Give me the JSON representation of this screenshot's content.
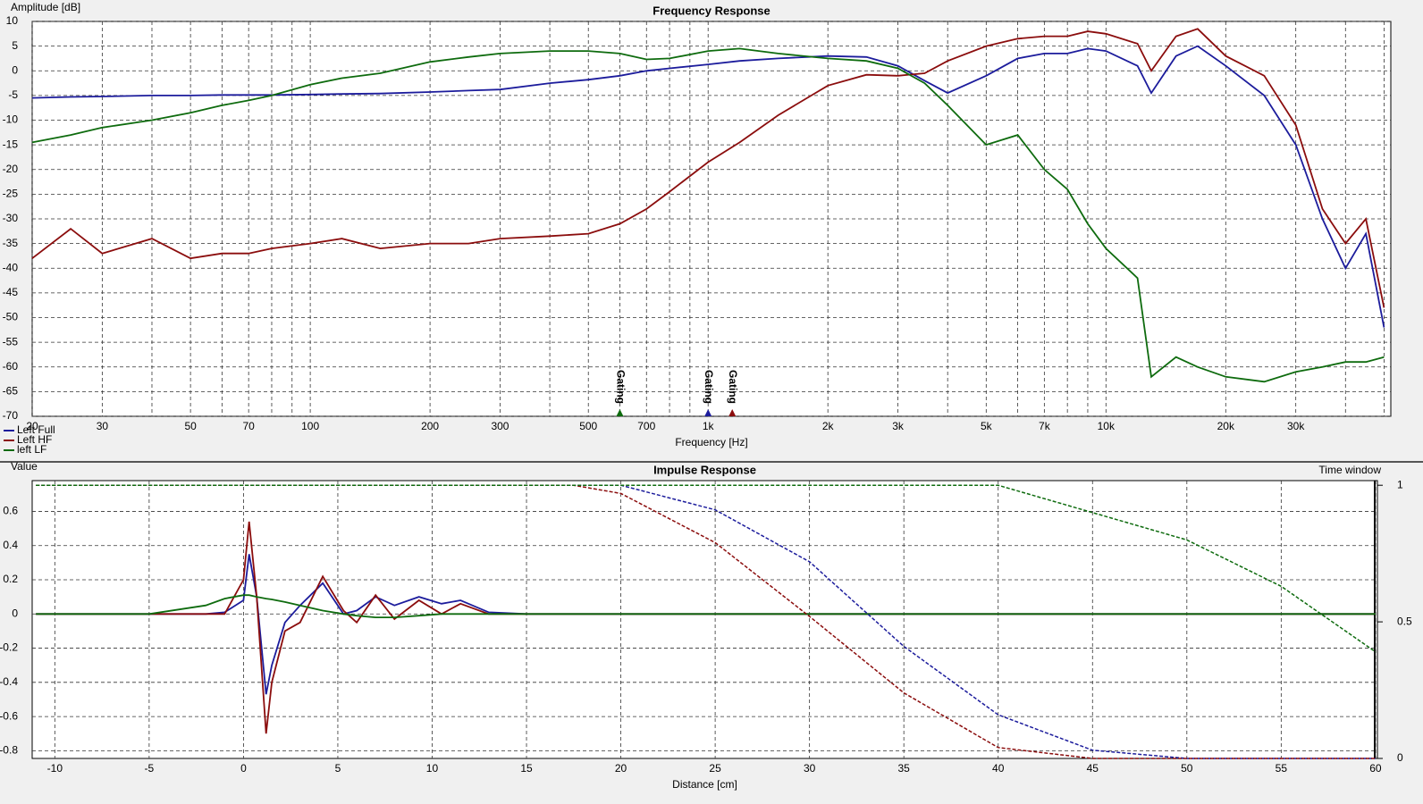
{
  "chart_data": [
    {
      "type": "line",
      "title": "Frequency Response",
      "ylabel": "Amplitude [dB]",
      "xlabel": "Frequency [Hz]",
      "log_x": true,
      "grid": true,
      "xlim": [
        20,
        52000
      ],
      "ylim": [
        -70,
        10
      ],
      "xticks": [
        20,
        30,
        50,
        70,
        100,
        200,
        300,
        500,
        700,
        {
          "value": 1000,
          "label": "1k"
        },
        {
          "value": 2000,
          "label": "2k"
        },
        {
          "value": 3000,
          "label": "3k"
        },
        {
          "value": 5000,
          "label": "5k"
        },
        {
          "value": 7000,
          "label": "7k"
        },
        {
          "value": 10000,
          "label": "10k"
        },
        {
          "value": 20000,
          "label": "20k"
        },
        {
          "value": 30000,
          "label": "30k"
        }
      ],
      "xminorticks": [
        40,
        60,
        80,
        90,
        400,
        600,
        800,
        900,
        4000,
        6000,
        8000,
        9000,
        40000,
        50000
      ],
      "yticks": [
        10,
        5,
        0,
        -5,
        -10,
        -15,
        -20,
        -25,
        -30,
        -35,
        -40,
        -45,
        -50,
        -55,
        -60,
        -65,
        -70
      ],
      "x": [
        20,
        25,
        30,
        40,
        50,
        60,
        70,
        80,
        100,
        120,
        150,
        200,
        250,
        300,
        400,
        500,
        600,
        700,
        800,
        1000,
        1200,
        1500,
        2000,
        2500,
        3000,
        3500,
        4000,
        5000,
        6000,
        7000,
        8000,
        9000,
        10000,
        12000,
        13000,
        15000,
        17000,
        20000,
        25000,
        30000,
        35000,
        40000,
        45000,
        50000
      ],
      "series": [
        {
          "name": "Left Full",
          "color": "#1c1c9c",
          "values": [
            -5.5,
            -5.3,
            -5.2,
            -5,
            -5,
            -4.9,
            -4.9,
            -4.9,
            -4.8,
            -4.7,
            -4.6,
            -4.3,
            -4,
            -3.8,
            -2.5,
            -1.8,
            -1,
            0,
            0.5,
            1.3,
            2,
            2.5,
            3,
            2.8,
            1,
            -2,
            -4.5,
            -1,
            2.5,
            3.5,
            3.5,
            4.5,
            4,
            1,
            -4.5,
            3,
            5,
            1,
            -5,
            -15,
            -30,
            -40,
            -33,
            -52
          ]
        },
        {
          "name": "Left HF",
          "color": "#8b0d0d",
          "values": [
            -38,
            -32,
            -37,
            -34,
            -38,
            -37,
            -37,
            -36,
            -35,
            -34,
            -36,
            -35,
            -35,
            -34,
            -33.5,
            -33,
            -31,
            -28,
            -24.5,
            -18.5,
            -14.5,
            -9,
            -3,
            -0.8,
            -1,
            -0.5,
            2,
            5,
            6.5,
            7,
            7,
            8,
            7.5,
            5.5,
            0,
            7,
            8.5,
            3,
            -1,
            -11,
            -28,
            -35,
            -30,
            -48
          ]
        },
        {
          "name": "left LF",
          "color": "#0e6b0e",
          "values": [
            -14.5,
            -13,
            -11.5,
            -10,
            -8.5,
            -7,
            -6,
            -5,
            -2.8,
            -1.5,
            -0.5,
            1.8,
            2.8,
            3.5,
            4,
            4,
            3.5,
            2.3,
            2.5,
            4,
            4.5,
            3.5,
            2.5,
            2,
            0.5,
            -2.5,
            -7,
            -15,
            -13,
            -20,
            -24,
            -31,
            -36,
            -42,
            -62,
            -58,
            -60,
            -62,
            -63,
            -61,
            -60,
            -59,
            -59,
            -58
          ]
        }
      ],
      "markers": [
        {
          "label": "Gating",
          "x": 600,
          "color": "#0e6b0e"
        },
        {
          "label": "Gating",
          "x": 1000,
          "color": "#1c1c9c"
        },
        {
          "label": "Gating",
          "x": 1150,
          "color": "#8b0d0d"
        }
      ]
    },
    {
      "type": "line",
      "title": "Impulse Response",
      "ylabel": "Value",
      "y2label": "Time window",
      "xlabel": "Distance [cm]",
      "grid": true,
      "xlim": [
        -11.2,
        60.1
      ],
      "ylim": [
        -0.845,
        0.78
      ],
      "y2lim": [
        0,
        1.017
      ],
      "xticks": [
        -10,
        -5,
        0,
        5,
        10,
        15,
        20,
        25,
        30,
        35,
        40,
        45,
        50,
        55,
        60
      ],
      "yticks": [
        0.6,
        0.4,
        0.2,
        0,
        -0.2,
        -0.4,
        -0.6,
        -0.8
      ],
      "y2ticks": [
        0,
        0.5,
        1
      ],
      "x": [
        -11,
        -5,
        -2,
        -1,
        0,
        0.3,
        0.7,
        1.2,
        1.5,
        2.2,
        3,
        4.2,
        5.3,
        6,
        7,
        8,
        9.3,
        10.5,
        11.5,
        13,
        15,
        20,
        30,
        40,
        50,
        60
      ],
      "series": [
        {
          "name": "Left Full",
          "color": "#1c1c9c",
          "values": [
            0,
            0,
            0,
            0.01,
            0.08,
            0.35,
            0.1,
            -0.47,
            -0.3,
            -0.05,
            0.05,
            0.18,
            0,
            0.02,
            0.1,
            0.05,
            0.1,
            0.06,
            0.08,
            0.01,
            0,
            0,
            0,
            0,
            0,
            0
          ]
        },
        {
          "name": "Left HF",
          "color": "#8b0d0d",
          "values": [
            0,
            0,
            0,
            0,
            0.2,
            0.54,
            0.1,
            -0.7,
            -0.4,
            -0.1,
            -0.05,
            0.22,
            0.02,
            -0.05,
            0.11,
            -0.03,
            0.08,
            0,
            0.06,
            0,
            0,
            0,
            0,
            0,
            0,
            0
          ]
        },
        {
          "name": "left LF",
          "color": "#0e6b0e",
          "values": [
            0,
            0,
            0.05,
            0.09,
            0.11,
            0.11,
            0.1,
            0.09,
            0.085,
            0.07,
            0.05,
            0.02,
            0,
            -0.01,
            -0.02,
            -0.02,
            -0.01,
            0,
            0,
            0,
            0,
            0,
            0,
            0,
            0,
            0
          ]
        },
        {
          "axis": "y2",
          "dashed": true,
          "color": "#1c1c9c",
          "x": [
            -11,
            17.5,
            20,
            25,
            30,
            35,
            40,
            45,
            50,
            55,
            60
          ],
          "values": [
            1,
            1,
            1,
            0.91,
            0.72,
            0.41,
            0.16,
            0.03,
            0,
            0,
            0
          ]
        },
        {
          "axis": "y2",
          "dashed": true,
          "color": "#8b0d0d",
          "x": [
            -11,
            17.5,
            20,
            25,
            30,
            35,
            40,
            45,
            50,
            55,
            60
          ],
          "values": [
            1,
            1,
            0.97,
            0.79,
            0.52,
            0.24,
            0.04,
            0,
            0,
            0,
            0
          ]
        },
        {
          "axis": "y2",
          "dashed": true,
          "color": "#0e6b0e",
          "x": [
            -11,
            17.5,
            20,
            25,
            30,
            35,
            40,
            45,
            50,
            55,
            60
          ],
          "values": [
            1,
            1,
            1,
            1,
            1,
            1,
            1,
            0.9,
            0.8,
            0.63,
            0.39
          ]
        }
      ]
    }
  ]
}
